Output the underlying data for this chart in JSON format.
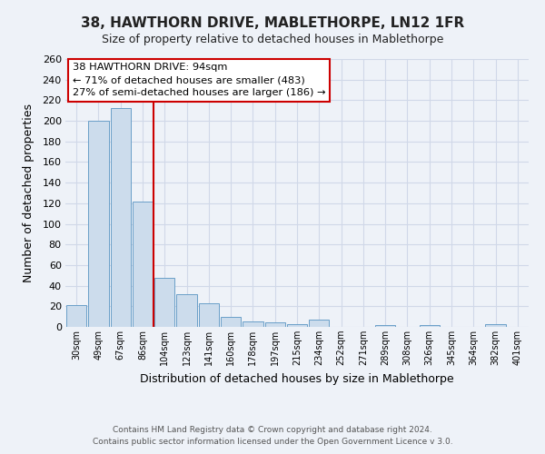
{
  "title": "38, HAWTHORN DRIVE, MABLETHORPE, LN12 1FR",
  "subtitle": "Size of property relative to detached houses in Mablethorpe",
  "xlabel": "Distribution of detached houses by size in Mablethorpe",
  "ylabel": "Number of detached properties",
  "bar_labels": [
    "30sqm",
    "49sqm",
    "67sqm",
    "86sqm",
    "104sqm",
    "123sqm",
    "141sqm",
    "160sqm",
    "178sqm",
    "197sqm",
    "215sqm",
    "234sqm",
    "252sqm",
    "271sqm",
    "289sqm",
    "308sqm",
    "326sqm",
    "345sqm",
    "364sqm",
    "382sqm",
    "401sqm"
  ],
  "bar_values": [
    21,
    200,
    212,
    122,
    48,
    32,
    23,
    10,
    5,
    4,
    3,
    7,
    0,
    0,
    2,
    0,
    2,
    0,
    0,
    3,
    0
  ],
  "bar_color": "#ccdcec",
  "bar_edge_color": "#6a9fc8",
  "grid_color": "#d0d8e8",
  "background_color": "#eef2f8",
  "vline_x": 3.5,
  "vline_color": "#cc0000",
  "annotation_title": "38 HAWTHORN DRIVE: 94sqm",
  "annotation_line1": "← 71% of detached houses are smaller (483)",
  "annotation_line2": "27% of semi-detached houses are larger (186) →",
  "annotation_box_facecolor": "#ffffff",
  "annotation_box_edgecolor": "#cc0000",
  "ylim": [
    0,
    260
  ],
  "yticks": [
    0,
    20,
    40,
    60,
    80,
    100,
    120,
    140,
    160,
    180,
    200,
    220,
    240,
    260
  ],
  "footer1": "Contains HM Land Registry data © Crown copyright and database right 2024.",
  "footer2": "Contains public sector information licensed under the Open Government Licence v 3.0."
}
